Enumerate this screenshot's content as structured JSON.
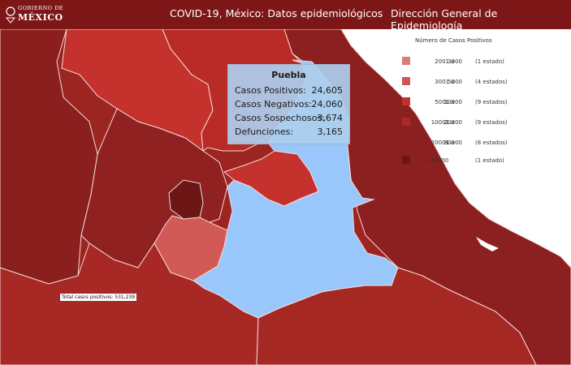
{
  "header": {
    "logo_line1": "GOBIERNO DE",
    "logo_line2": "MÉXICO",
    "title": "COVID-19, México: Datos epidemiológicos",
    "organization": "Dirección General de Epidemiología"
  },
  "legend": {
    "title": "Número de Casos Positivos",
    "rows": [
      {
        "low": "2001",
        "sep": "a",
        "high": "3000",
        "count": "(1 estado)",
        "color": "#dc7a78"
      },
      {
        "low": "3001",
        "sep": "a",
        "high": "5000",
        "count": "(4 estados)",
        "color": "#cf5652"
      },
      {
        "low": "5001",
        "sep": "a",
        "high": "10000",
        "count": "(9 estados)",
        "color": "#c1312d"
      },
      {
        "low": "10001",
        "sep": "a",
        "high": "20000",
        "count": "(9 estados)",
        "color": "#aa2a25"
      },
      {
        "low": "20001",
        "sep": "a",
        "high": "80000",
        "count": "(8 estados)",
        "color": "#8c2020"
      },
      {
        "low": "> 80000",
        "sep": "",
        "high": "",
        "count": "(1 estado)",
        "color": "#6c1616"
      }
    ]
  },
  "tooltip": {
    "state": "Puebla",
    "rows": [
      {
        "label": "Casos Positivos:",
        "value": "24,605"
      },
      {
        "label": "Casos Negativos:",
        "value": "24,060"
      },
      {
        "label": "Casos Sospechosos:",
        "value": "3,674"
      },
      {
        "label": "Defunciones:",
        "value": "3,165"
      }
    ]
  },
  "total_label": "Total casos positivos: 531,239",
  "colors": {
    "header": "#7d1717",
    "highlight": "#99c7fb",
    "water": "#ffffff",
    "border": "#f3d9d9"
  }
}
